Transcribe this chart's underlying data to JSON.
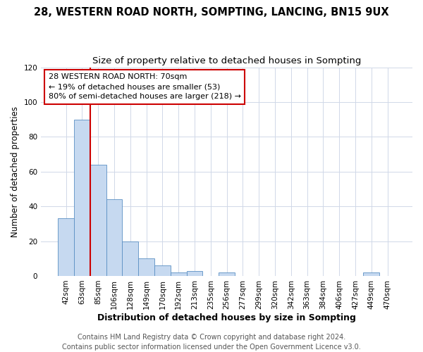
{
  "title": "28, WESTERN ROAD NORTH, SOMPTING, LANCING, BN15 9UX",
  "subtitle": "Size of property relative to detached houses in Sompting",
  "xlabel": "Distribution of detached houses by size in Sompting",
  "ylabel": "Number of detached properties",
  "bar_labels": [
    "42sqm",
    "63sqm",
    "85sqm",
    "106sqm",
    "128sqm",
    "149sqm",
    "170sqm",
    "192sqm",
    "213sqm",
    "235sqm",
    "256sqm",
    "277sqm",
    "299sqm",
    "320sqm",
    "342sqm",
    "363sqm",
    "384sqm",
    "406sqm",
    "427sqm",
    "449sqm",
    "470sqm"
  ],
  "bar_heights": [
    33,
    90,
    64,
    44,
    20,
    10,
    6,
    2,
    3,
    0,
    2,
    0,
    0,
    0,
    0,
    0,
    0,
    0,
    0,
    2,
    0
  ],
  "bar_color": "#c6d9f0",
  "bar_edge_color": "#5a8fc3",
  "vline_x_index": 1,
  "vline_color": "#cc0000",
  "ylim": [
    0,
    120
  ],
  "yticks": [
    0,
    20,
    40,
    60,
    80,
    100,
    120
  ],
  "annotation_title": "28 WESTERN ROAD NORTH: 70sqm",
  "annotation_line1": "← 19% of detached houses are smaller (53)",
  "annotation_line2": "80% of semi-detached houses are larger (218) →",
  "annotation_box_color": "#ffffff",
  "annotation_box_edge": "#cc0000",
  "footer_line1": "Contains HM Land Registry data © Crown copyright and database right 2024.",
  "footer_line2": "Contains public sector information licensed under the Open Government Licence v3.0.",
  "title_fontsize": 10.5,
  "subtitle_fontsize": 9.5,
  "xlabel_fontsize": 9,
  "ylabel_fontsize": 8.5,
  "tick_fontsize": 7.5,
  "annotation_fontsize": 8,
  "footer_fontsize": 7,
  "background_color": "#ffffff",
  "grid_color": "#d0d8e8"
}
